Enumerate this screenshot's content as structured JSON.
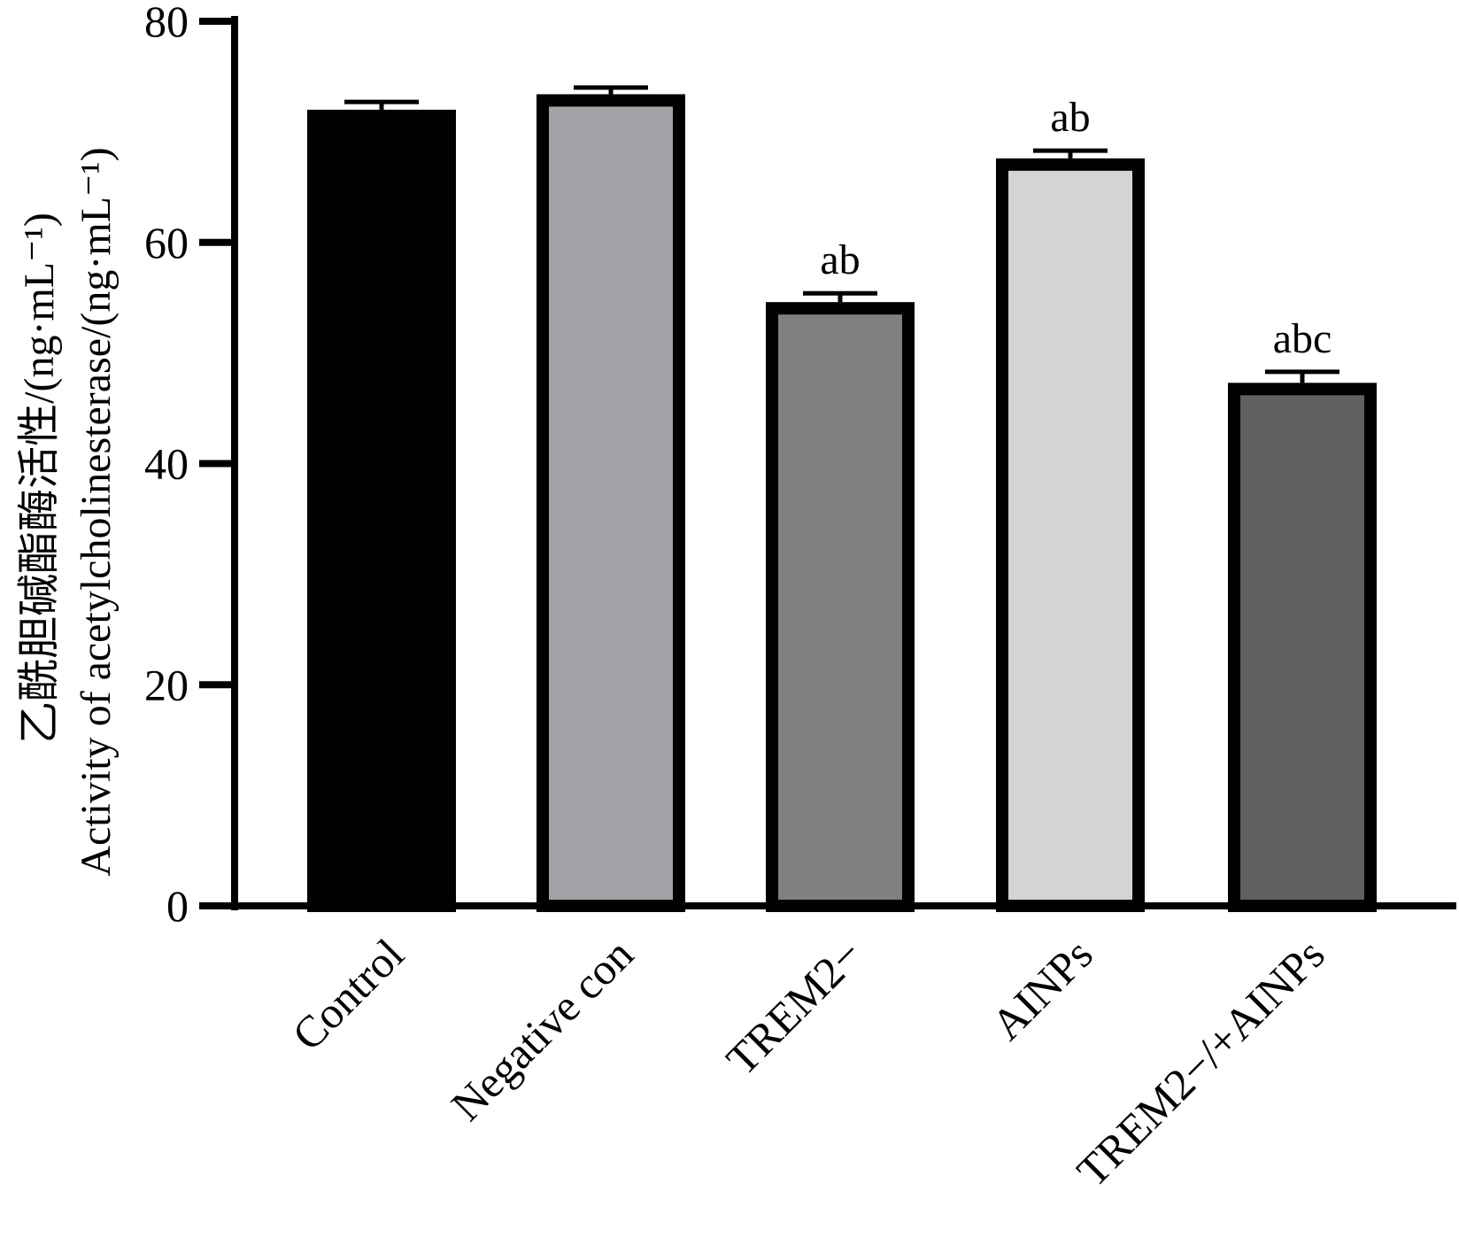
{
  "chart_data": {
    "type": "bar",
    "title": "",
    "xlabel": "",
    "ylabel_cn": "乙酰胆碱酯酶活性/(ng·mL⁻¹)",
    "ylabel_en": "Activity of acetylcholinesterase/(ng·mL⁻¹)",
    "ylim": [
      0,
      80
    ],
    "yticks": [
      0,
      20,
      40,
      60,
      80
    ],
    "categories": [
      "Control",
      "Negative con",
      "TREM2−",
      "AINPs",
      "TREM2−/+AINPs"
    ],
    "values": [
      72.0,
      73.4,
      54.6,
      67.6,
      47.3
    ],
    "errors": [
      0.7,
      0.6,
      0.8,
      0.7,
      1.0
    ],
    "significance": [
      "",
      "",
      "ab",
      "ab",
      "abc"
    ],
    "fill_colors": [
      "#000000",
      "#a2a2a6",
      "#808080",
      "#d4d4d4",
      "#606060"
    ],
    "edge_color": "#000000",
    "grid": false,
    "legend": "none"
  }
}
